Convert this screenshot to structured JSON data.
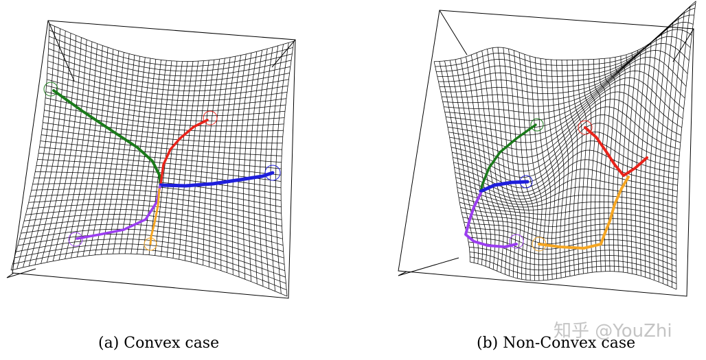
{
  "panels": [
    {
      "caption": "(a) Convex case",
      "paths": [
        {
          "color": "#1a7a1a"
        },
        {
          "color": "#e8231a"
        },
        {
          "color": "#1f1fdc"
        },
        {
          "color": "#9b3ef0"
        },
        {
          "color": "#f5a623"
        }
      ]
    },
    {
      "caption": "(b) Non-Convex case",
      "paths": [
        {
          "color": "#1a7a1a"
        },
        {
          "color": "#e8231a"
        },
        {
          "color": "#1f1fdc"
        },
        {
          "color": "#9b3ef0"
        },
        {
          "color": "#f5a623"
        }
      ]
    }
  ],
  "watermark": "知乎 @YouZhi"
}
